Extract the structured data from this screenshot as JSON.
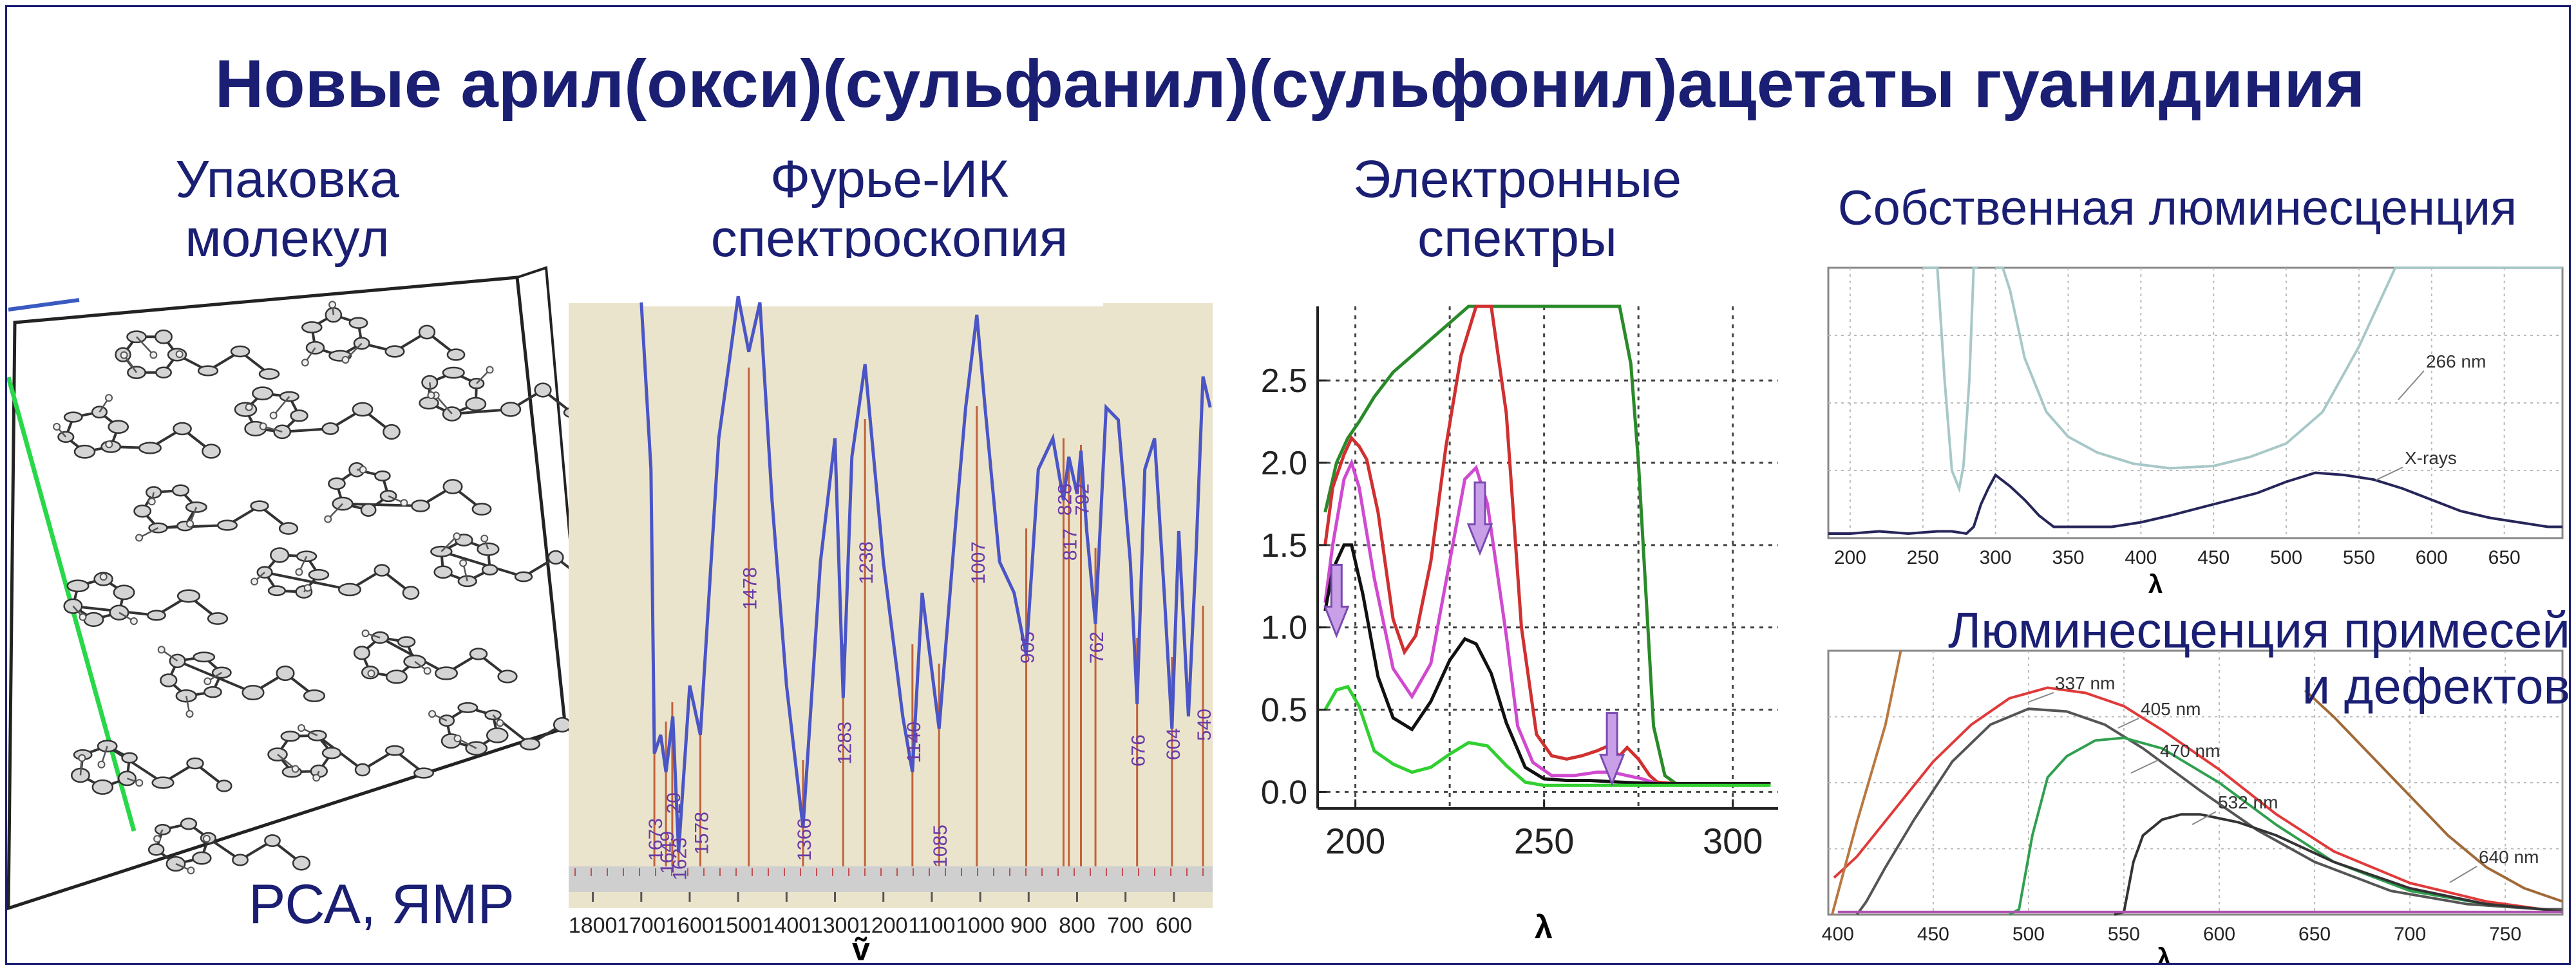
{
  "title": "Новые арил(окси)(сульфанил)(сульфонил)ацетаты гуанидиния",
  "sections": {
    "packing": {
      "heading_1": "Упаковка",
      "heading_2": "молекул",
      "methods": "РСА, ЯМР"
    },
    "ftir": {
      "heading_1": "Фурье-ИК",
      "heading_2": "спектроскопия"
    },
    "electronic": {
      "heading_1": "Электронные",
      "heading_2": "спектры"
    },
    "intrinsic": {
      "heading": "Собственная люминесценция"
    },
    "impurity": {
      "heading_1": "Люминесценция примесей",
      "heading_2": "и дефектов"
    }
  },
  "colors": {
    "title": "#1a1f73",
    "ftir_bg": "#ebe4cc",
    "ftir_line": "#4a55c6",
    "ftir_marker": "#c0623b",
    "ftir_label": "#6a3aa8",
    "uv_arrow": "#c9a0e8",
    "axis_cell_edge": "#28d848"
  },
  "chart_data": [
    {
      "type": "line",
      "name": "ftir",
      "xlabel": "ṽ",
      "x_ticks": [
        1800,
        1700,
        1600,
        1500,
        1400,
        1300,
        1200,
        1100,
        1000,
        900,
        800,
        700,
        600
      ],
      "xlim": [
        1850,
        520
      ],
      "series": [
        {
          "x": [
            1700,
            1680,
            1673,
            1660,
            1649,
            1635,
            1623,
            1600,
            1578,
            1540,
            1500,
            1478,
            1455,
            1430,
            1400,
            1366,
            1330,
            1300,
            1283,
            1265,
            1238,
            1200,
            1160,
            1140,
            1120,
            1085,
            1050,
            1030,
            1007,
            990,
            960,
            930,
            905,
            880,
            850,
            828,
            817,
            800,
            792,
            780,
            762,
            740,
            715,
            690,
            676,
            660,
            640,
            620,
            604,
            590,
            570,
            555,
            540,
            525
          ],
          "y": [
            0.97,
            0.7,
            0.24,
            0.27,
            0.21,
            0.3,
            0.08,
            0.35,
            0.27,
            0.75,
            0.98,
            0.89,
            0.97,
            0.65,
            0.35,
            0.12,
            0.55,
            0.75,
            0.33,
            0.72,
            0.87,
            0.55,
            0.3,
            0.21,
            0.5,
            0.28,
            0.62,
            0.8,
            0.95,
            0.8,
            0.55,
            0.5,
            0.4,
            0.7,
            0.75,
            0.65,
            0.72,
            0.66,
            0.73,
            0.6,
            0.45,
            0.8,
            0.78,
            0.55,
            0.32,
            0.7,
            0.75,
            0.5,
            0.28,
            0.6,
            0.3,
            0.55,
            0.85,
            0.8
          ]
        }
      ],
      "peak_labels": [
        "1673",
        "1649",
        "20",
        "1623",
        "1578",
        "1478",
        "1366",
        "1283",
        "1238",
        "1140",
        "1085",
        "1007",
        "905",
        "828",
        "817",
        "792",
        "762",
        "676",
        "604",
        "540"
      ]
    },
    {
      "type": "line",
      "name": "electronic_spectra",
      "xlabel": "λ",
      "xlim": [
        190,
        312
      ],
      "ylim": [
        -0.1,
        2.95
      ],
      "x_ticks": [
        200,
        250,
        300
      ],
      "y_ticks": [
        "0.0",
        "0.5",
        "1.0",
        "1.5",
        "2.0",
        "2.5"
      ],
      "series": [
        {
          "color": "#2a8a2a",
          "x": [
            192,
            195,
            198,
            201,
            205,
            210,
            215,
            220,
            225,
            230,
            235,
            240,
            245,
            250,
            255,
            260,
            265,
            270,
            273,
            275,
            277,
            279,
            282,
            285,
            290,
            300,
            310
          ],
          "y": [
            1.7,
            2.0,
            2.15,
            2.25,
            2.4,
            2.55,
            2.65,
            2.75,
            2.85,
            2.95,
            2.95,
            2.95,
            2.95,
            2.95,
            2.95,
            2.95,
            2.95,
            2.95,
            2.6,
            2.0,
            1.2,
            0.4,
            0.1,
            0.05,
            0.05,
            0.05,
            0.05
          ]
        },
        {
          "color": "#d03030",
          "x": [
            192,
            194,
            197,
            199,
            201,
            203,
            206,
            210,
            213,
            216,
            220,
            224,
            228,
            232,
            236,
            240,
            244,
            248,
            252,
            256,
            260,
            264,
            267,
            270,
            272,
            275,
            278,
            280,
            285,
            290,
            300,
            310
          ],
          "y": [
            1.5,
            1.85,
            2.05,
            2.15,
            2.1,
            2.02,
            1.7,
            1.05,
            0.85,
            0.95,
            1.4,
            2.1,
            2.65,
            2.95,
            2.95,
            2.3,
            1.0,
            0.35,
            0.22,
            0.2,
            0.22,
            0.25,
            0.28,
            0.22,
            0.27,
            0.2,
            0.1,
            0.06,
            0.05,
            0.05,
            0.05,
            0.05
          ]
        },
        {
          "color": "#d04ad0",
          "x": [
            192,
            194,
            197,
            199,
            201,
            205,
            210,
            215,
            220,
            225,
            229,
            232,
            235,
            240,
            243,
            247,
            252,
            258,
            264,
            268,
            272,
            276,
            280,
            285,
            300,
            310
          ],
          "y": [
            1.15,
            1.5,
            1.9,
            2.0,
            1.85,
            1.3,
            0.75,
            0.58,
            0.78,
            1.4,
            1.9,
            1.97,
            1.75,
            0.95,
            0.4,
            0.18,
            0.1,
            0.1,
            0.12,
            0.12,
            0.1,
            0.08,
            0.05,
            0.05,
            0.05,
            0.05
          ]
        },
        {
          "color": "#111111",
          "x": [
            192,
            194,
            197,
            199,
            202,
            206,
            210,
            215,
            220,
            225,
            229,
            232,
            236,
            240,
            245,
            250,
            256,
            262,
            270,
            280,
            290,
            300,
            310
          ],
          "y": [
            1.1,
            1.35,
            1.5,
            1.5,
            1.2,
            0.7,
            0.45,
            0.38,
            0.55,
            0.8,
            0.93,
            0.9,
            0.72,
            0.42,
            0.15,
            0.08,
            0.07,
            0.07,
            0.06,
            0.05,
            0.05,
            0.05,
            0.05
          ]
        },
        {
          "color": "#30d030",
          "x": [
            192,
            195,
            198,
            201,
            205,
            210,
            215,
            220,
            225,
            230,
            235,
            240,
            245,
            250,
            260,
            270,
            280,
            290,
            300,
            310
          ],
          "y": [
            0.5,
            0.62,
            0.64,
            0.52,
            0.25,
            0.17,
            0.12,
            0.15,
            0.23,
            0.3,
            0.28,
            0.16,
            0.06,
            0.04,
            0.04,
            0.04,
            0.04,
            0.04,
            0.04,
            0.04
          ]
        }
      ],
      "arrows_x": [
        195,
        233,
        268
      ]
    },
    {
      "type": "line",
      "name": "intrinsic_luminescence",
      "xlabel": "λ",
      "xlim": [
        185,
        690
      ],
      "x_ticks": [
        200,
        250,
        300,
        350,
        400,
        450,
        500,
        550,
        600,
        650
      ],
      "annotations": [
        "266 nm",
        "X-rays"
      ],
      "series": [
        {
          "name": "266 nm",
          "color": "#a8c8c8",
          "x": [
            250,
            260,
            265,
            270,
            275,
            278,
            282,
            285,
            288
          ],
          "y": [
            2.5,
            1.4,
            0.7,
            0.3,
            0.22,
            0.32,
            0.7,
            1.3,
            2.5
          ]
        },
        {
          "name": "266 nm",
          "color": "#a8c8c8",
          "x": [
            300,
            305,
            310,
            320,
            335,
            350,
            370,
            395,
            420,
            450,
            475,
            500,
            525,
            550,
            575,
            600,
            630,
            660,
            690
          ],
          "y": [
            2.5,
            1.6,
            1.1,
            0.8,
            0.56,
            0.45,
            0.38,
            0.33,
            0.31,
            0.32,
            0.36,
            0.42,
            0.56,
            0.85,
            1.2,
            1.62,
            2.1,
            2.5,
            2.9
          ]
        },
        {
          "name": "X-rays",
          "color": "#26265a",
          "x": [
            185,
            200,
            220,
            240,
            260,
            270,
            280,
            285,
            290,
            295,
            300,
            310,
            320,
            330,
            340,
            350,
            380,
            400,
            420,
            450,
            480,
            500,
            520,
            540,
            560,
            580,
            600,
            620,
            640,
            660,
            680,
            690
          ],
          "y": [
            0.02,
            0.02,
            0.03,
            0.02,
            0.03,
            0.03,
            0.02,
            0.05,
            0.15,
            0.22,
            0.28,
            0.23,
            0.17,
            0.1,
            0.05,
            0.05,
            0.05,
            0.07,
            0.1,
            0.15,
            0.2,
            0.25,
            0.29,
            0.28,
            0.26,
            0.22,
            0.17,
            0.12,
            0.09,
            0.07,
            0.05,
            0.05
          ]
        }
      ]
    },
    {
      "type": "line",
      "name": "impurity_luminescence",
      "xlabel": "λ",
      "xlim": [
        395,
        780
      ],
      "x_ticks": [
        400,
        450,
        500,
        550,
        600,
        650,
        700,
        750
      ],
      "series": [
        {
          "name": "337 nm",
          "color": "#e03a3a",
          "x": [
            398,
            410,
            430,
            450,
            470,
            490,
            510,
            530,
            550,
            570,
            600,
            630,
            660,
            700,
            740,
            770,
            780
          ],
          "y": [
            0.14,
            0.22,
            0.4,
            0.58,
            0.72,
            0.82,
            0.86,
            0.84,
            0.79,
            0.7,
            0.55,
            0.38,
            0.24,
            0.12,
            0.05,
            0.02,
            0.02
          ]
        },
        {
          "name": "405 nm",
          "color": "#555555",
          "x": [
            410,
            415,
            425,
            440,
            460,
            480,
            500,
            520,
            540,
            560,
            590,
            620,
            650,
            690,
            730,
            770,
            780
          ],
          "y": [
            0.0,
            0.05,
            0.18,
            0.36,
            0.58,
            0.72,
            0.78,
            0.77,
            0.72,
            0.63,
            0.47,
            0.32,
            0.2,
            0.09,
            0.04,
            0.02,
            0.02
          ]
        },
        {
          "name": "470 nm",
          "color": "#30a050",
          "x": [
            490,
            495,
            502,
            510,
            520,
            535,
            550,
            570,
            600,
            630,
            660,
            700,
            740,
            770,
            780
          ],
          "y": [
            0.0,
            0.02,
            0.3,
            0.52,
            0.6,
            0.66,
            0.67,
            0.63,
            0.5,
            0.34,
            0.2,
            0.09,
            0.04,
            0.02,
            0.01
          ]
        },
        {
          "name": "532 nm",
          "color": "#333333",
          "x": [
            545,
            550,
            555,
            560,
            570,
            580,
            590,
            610,
            630,
            660,
            700,
            740,
            770,
            780
          ],
          "y": [
            0.0,
            0.01,
            0.2,
            0.3,
            0.36,
            0.38,
            0.38,
            0.35,
            0.3,
            0.2,
            0.1,
            0.04,
            0.02,
            0.01
          ]
        },
        {
          "name": "640 nm",
          "color": "#a06a38",
          "x": [
            645,
            660,
            680,
            700,
            720,
            740,
            760,
            780
          ],
          "y": [
            0.85,
            0.75,
            0.6,
            0.45,
            0.3,
            0.18,
            0.1,
            0.05
          ]
        },
        {
          "color": "#b87840",
          "x": [
            397,
            410,
            425,
            433
          ],
          "y": [
            0.0,
            0.35,
            0.72,
            1.0
          ]
        },
        {
          "color": "#b050b0",
          "x": [
            400,
            500,
            600,
            700,
            780
          ],
          "y": [
            0.01,
            0.01,
            0.01,
            0.01,
            0.01
          ]
        }
      ]
    }
  ]
}
